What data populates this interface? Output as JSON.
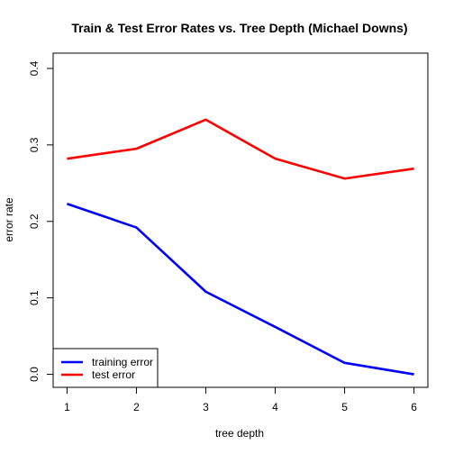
{
  "chart_data": {
    "type": "line",
    "title": "Train & Test Error Rates vs. Tree Depth (Michael Downs)",
    "xlabel": "tree depth",
    "ylabel": "error rate",
    "x": [
      1,
      2,
      3,
      4,
      5,
      6
    ],
    "xlim": [
      0.8,
      6.2
    ],
    "ylim": [
      -0.017,
      0.42
    ],
    "xticks": [
      1,
      2,
      3,
      4,
      5,
      6
    ],
    "yticks": [
      0.0,
      0.1,
      0.2,
      0.3,
      0.4
    ],
    "ytick_labels": [
      "0.0",
      "0.1",
      "0.2",
      "0.3",
      "0.4"
    ],
    "grid": false,
    "legend_position": "bottom-left",
    "series": [
      {
        "name": "training error",
        "color": "#0000ff",
        "values": [
          0.223,
          0.192,
          0.108,
          0.062,
          0.015,
          0.0
        ]
      },
      {
        "name": "test error",
        "color": "#ff0000",
        "values": [
          0.282,
          0.295,
          0.333,
          0.282,
          0.256,
          0.269
        ]
      }
    ]
  }
}
